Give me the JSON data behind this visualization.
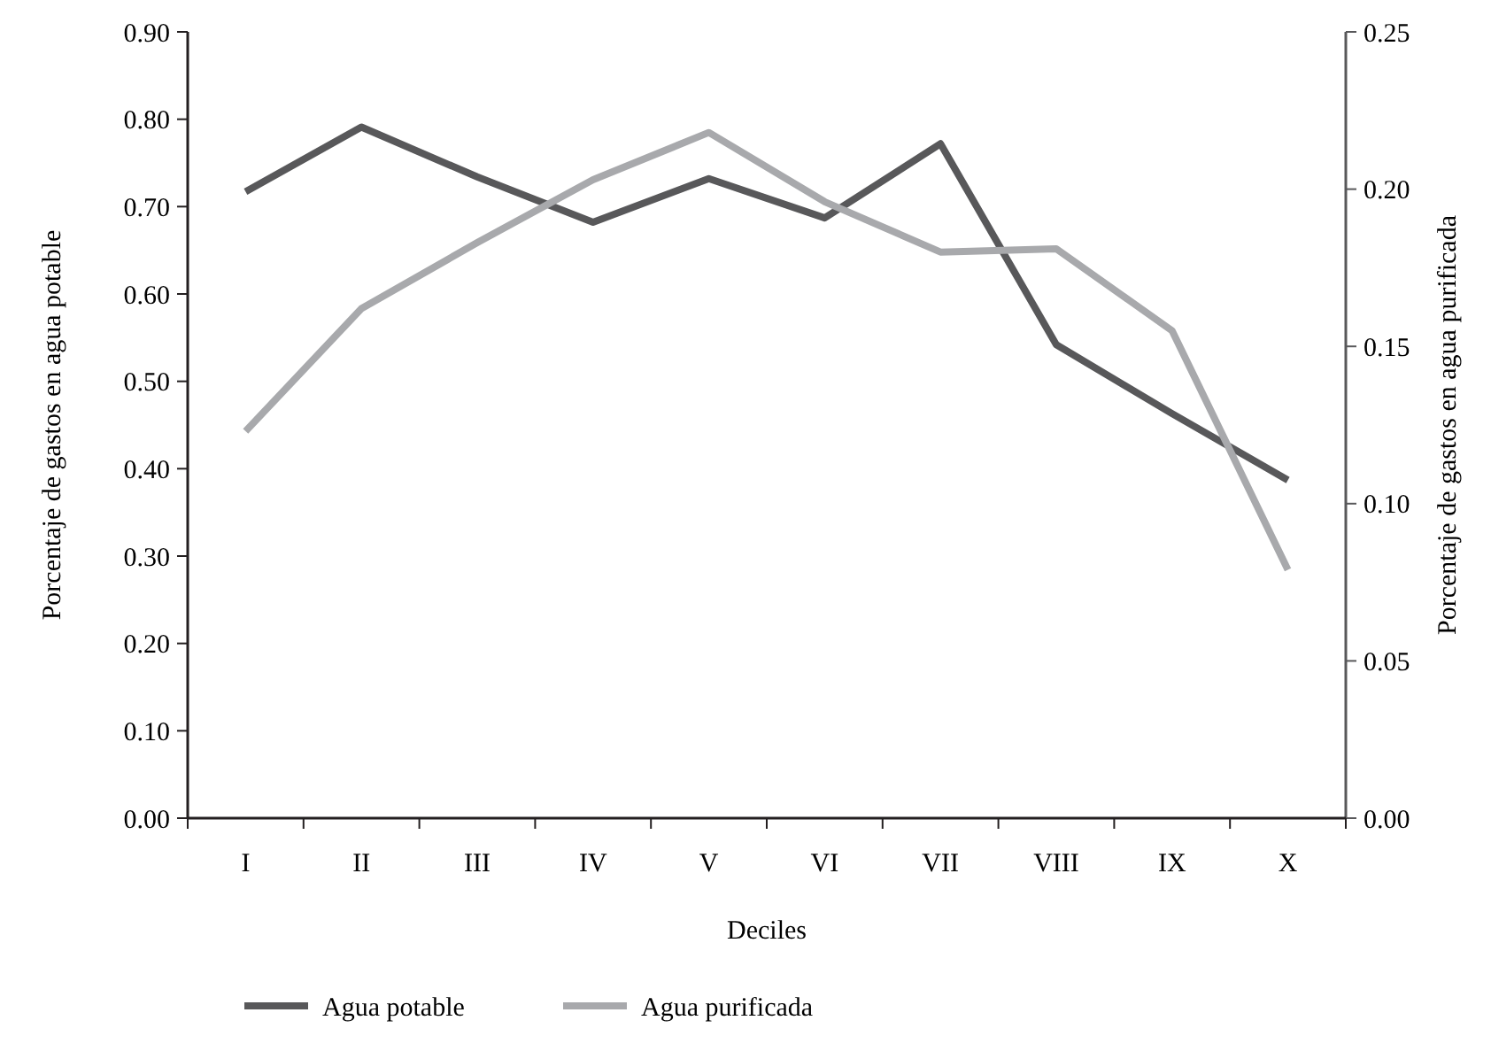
{
  "chart_data": {
    "type": "line",
    "xlabel": "Deciles",
    "ylabel": "Porcentaje de gastos en agua potable",
    "y2label": "Porcentaje de gastos en agua purificada",
    "categories": [
      "I",
      "II",
      "III",
      "IV",
      "V",
      "VI",
      "VII",
      "VIII",
      "IX",
      "X"
    ],
    "series": [
      {
        "name": "Agua potable",
        "color": "#58585a",
        "values": [
          0.717,
          0.791,
          0.734,
          0.682,
          0.732,
          0.687,
          0.772,
          0.542,
          0.463,
          0.387
        ]
      },
      {
        "name": "Agua purificada",
        "color": "#a8a9ac",
        "axis": "y2",
        "values": [
          0.123,
          0.162,
          0.183,
          0.203,
          0.218,
          0.196,
          0.18,
          0.181,
          0.155,
          0.079
        ]
      }
    ],
    "ylim": [
      0,
      0.9
    ],
    "yticks": [
      {
        "value": 0,
        "label": "0.00"
      },
      {
        "value": 0.1,
        "label": "0.10"
      },
      {
        "value": 0.2,
        "label": "0.20"
      },
      {
        "value": 0.3,
        "label": "0.30"
      },
      {
        "value": 0.4,
        "label": "0.40"
      },
      {
        "value": 0.5,
        "label": "0.50"
      },
      {
        "value": 0.6,
        "label": "0.60"
      },
      {
        "value": 0.7,
        "label": "0.70"
      },
      {
        "value": 0.8,
        "label": "0.80"
      },
      {
        "value": 0.9,
        "label": "0.90"
      }
    ],
    "y2lim": [
      0,
      0.25
    ],
    "y2ticks": [
      {
        "value": 0,
        "label": "0.00"
      },
      {
        "value": 0.05,
        "label": "0.05"
      },
      {
        "value": 0.1,
        "label": "0.10"
      },
      {
        "value": 0.15,
        "label": "0.15"
      },
      {
        "value": 0.2,
        "label": "0.20"
      },
      {
        "value": 0.25,
        "label": "0.25"
      }
    ],
    "legend": "bottom",
    "grid": false,
    "marker": "none",
    "line_style": "solid"
  }
}
